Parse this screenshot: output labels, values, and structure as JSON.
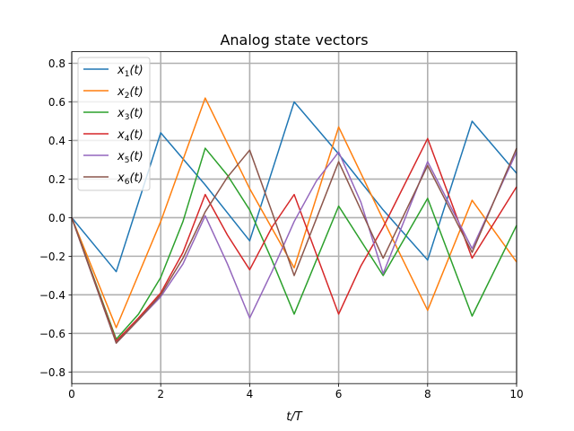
{
  "chart_data": {
    "type": "line",
    "title": "Analog state vectors",
    "xlabel": "t/T",
    "ylabel": "",
    "xlim": [
      0,
      10
    ],
    "ylim": [
      -0.86,
      0.86
    ],
    "xticks": [
      0,
      2,
      4,
      6,
      8,
      10
    ],
    "yticks": [
      -0.8,
      -0.6,
      -0.4,
      -0.2,
      0.0,
      0.2,
      0.4,
      0.6,
      0.8
    ],
    "xtick_labels": [
      "0",
      "2",
      "4",
      "6",
      "8",
      "10"
    ],
    "ytick_labels": [
      "−0.8",
      "−0.6",
      "−0.4",
      "−0.2",
      "0.0",
      "0.2",
      "0.4",
      "0.6",
      "0.8"
    ],
    "grid": true,
    "legend_position": "top-left",
    "series": [
      {
        "name": "x",
        "sub": "1",
        "suffix": "(t)",
        "color": "#1f77b4",
        "points": [
          [
            0,
            0
          ],
          [
            1,
            -0.28
          ],
          [
            2,
            0.44
          ],
          [
            3,
            0.17
          ],
          [
            4,
            -0.12
          ],
          [
            5,
            0.6
          ],
          [
            6,
            0.33
          ],
          [
            7,
            0.04
          ],
          [
            8,
            -0.22
          ],
          [
            9,
            0.5
          ],
          [
            10,
            0.23
          ]
        ]
      },
      {
        "name": "x",
        "sub": "2",
        "suffix": "(t)",
        "color": "#ff7f0e",
        "points": [
          [
            0,
            0
          ],
          [
            1,
            -0.57
          ],
          [
            2,
            -0.02
          ],
          [
            3,
            0.62
          ],
          [
            4,
            0.15
          ],
          [
            5,
            -0.26
          ],
          [
            6,
            0.47
          ],
          [
            7,
            -0.01
          ],
          [
            8,
            -0.48
          ],
          [
            9,
            0.09
          ],
          [
            10,
            -0.23
          ]
        ]
      },
      {
        "name": "x",
        "sub": "3",
        "suffix": "(t)",
        "color": "#2ca02c",
        "points": [
          [
            0,
            0
          ],
          [
            1,
            -0.63
          ],
          [
            1.5,
            -0.5
          ],
          [
            2,
            -0.31
          ],
          [
            2.5,
            -0.02
          ],
          [
            3,
            0.36
          ],
          [
            3.5,
            0.22
          ],
          [
            4,
            0.04
          ],
          [
            4.5,
            -0.22
          ],
          [
            5,
            -0.5
          ],
          [
            6,
            0.06
          ],
          [
            7,
            -0.3
          ],
          [
            8,
            0.1
          ],
          [
            9,
            -0.51
          ],
          [
            10,
            -0.04
          ]
        ]
      },
      {
        "name": "x",
        "sub": "4",
        "suffix": "(t)",
        "color": "#d62728",
        "points": [
          [
            0,
            0
          ],
          [
            1,
            -0.64
          ],
          [
            1.5,
            -0.52
          ],
          [
            2,
            -0.39
          ],
          [
            2.5,
            -0.18
          ],
          [
            3,
            0.12
          ],
          [
            3.5,
            -0.09
          ],
          [
            4,
            -0.27
          ],
          [
            4.5,
            -0.05
          ],
          [
            5,
            0.12
          ],
          [
            6,
            -0.5
          ],
          [
            6.5,
            -0.25
          ],
          [
            7,
            -0.05
          ],
          [
            8,
            0.41
          ],
          [
            9,
            -0.21
          ],
          [
            10,
            0.16
          ]
        ]
      },
      {
        "name": "x",
        "sub": "5",
        "suffix": "(t)",
        "color": "#9467bd",
        "points": [
          [
            0,
            0
          ],
          [
            1,
            -0.65
          ],
          [
            1.5,
            -0.53
          ],
          [
            2,
            -0.41
          ],
          [
            2.5,
            -0.24
          ],
          [
            3,
            0.01
          ],
          [
            3.5,
            -0.24
          ],
          [
            4,
            -0.52
          ],
          [
            4.5,
            -0.28
          ],
          [
            5,
            -0.02
          ],
          [
            5.5,
            0.19
          ],
          [
            6,
            0.34
          ],
          [
            6.5,
            0.08
          ],
          [
            7,
            -0.29
          ],
          [
            8,
            0.29
          ],
          [
            9,
            -0.16
          ],
          [
            10,
            0.34
          ]
        ]
      },
      {
        "name": "x",
        "sub": "6",
        "suffix": "(t)",
        "color": "#8c564b",
        "points": [
          [
            0,
            0
          ],
          [
            1,
            -0.65
          ],
          [
            1.5,
            -0.53
          ],
          [
            2,
            -0.4
          ],
          [
            2.5,
            -0.21
          ],
          [
            3,
            0.03
          ],
          [
            3.5,
            0.21
          ],
          [
            4,
            0.35
          ],
          [
            4.5,
            0.03
          ],
          [
            5,
            -0.3
          ],
          [
            6,
            0.29
          ],
          [
            7,
            -0.21
          ],
          [
            8,
            0.27
          ],
          [
            9,
            -0.18
          ],
          [
            10,
            0.36
          ]
        ]
      }
    ]
  }
}
